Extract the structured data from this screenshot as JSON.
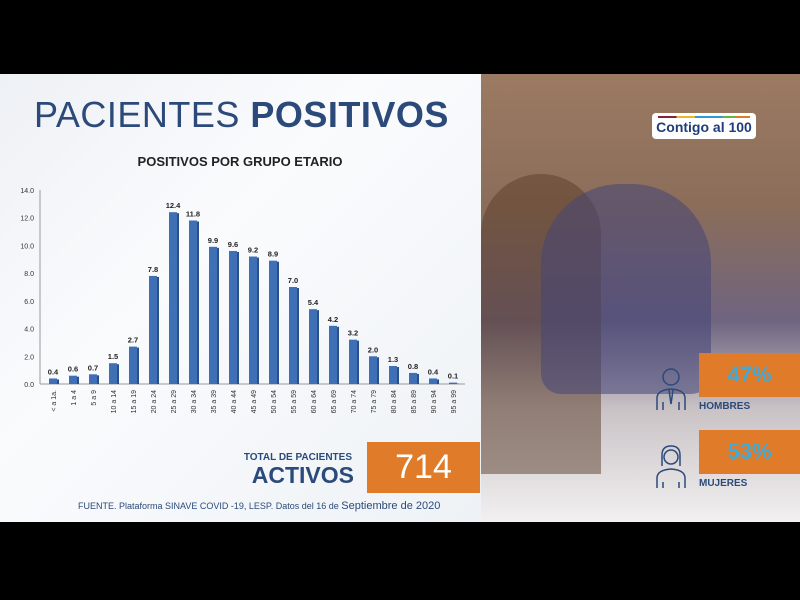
{
  "header": {
    "title_light": "PACIENTES",
    "title_bold": "POSITIVOS"
  },
  "chart_data": {
    "type": "bar",
    "title": "POSITIVOS POR GRUPO ETARIO",
    "categories": [
      "< a 1a.",
      "1 a 4",
      "5 a 9",
      "10 a 14",
      "15 a 19",
      "20 a 24",
      "25 a 29",
      "30 a 34",
      "35 a 39",
      "40 a 44",
      "45 a 49",
      "50 a 54",
      "55 a 59",
      "60 a 64",
      "65 a 69",
      "70 a 74",
      "75 a 79",
      "80 a 84",
      "85 a 89",
      "90 a 94",
      "95 a 99"
    ],
    "values": [
      0.4,
      0.6,
      0.7,
      1.5,
      2.7,
      7.8,
      12.4,
      11.8,
      9.9,
      9.6,
      9.2,
      8.9,
      7.0,
      5.4,
      4.2,
      3.2,
      2.0,
      1.3,
      0.8,
      0.4,
      0.1
    ],
    "ylim": [
      0,
      14
    ],
    "yticks": [
      "0.0",
      "2.0",
      "4.0",
      "6.0",
      "8.0",
      "10.0",
      "12.0",
      "14.0"
    ],
    "color": "#3f6fb5",
    "grid": false
  },
  "total": {
    "label": "TOTAL DE PACIENTES",
    "sublabel": "ACTIVOS",
    "value": "714"
  },
  "source": {
    "text": "FUENTE. Plataforma SINAVE COVID -19, LESP. Datos del 16 de ",
    "date": "Septiembre de 2020"
  },
  "logo": {
    "text": "Contigo al 100"
  },
  "gender": [
    {
      "label": "HOMBRES",
      "percent": "47%",
      "icon": "man-icon"
    },
    {
      "label": "MUJERES",
      "percent": "53%",
      "icon": "woman-icon"
    }
  ],
  "colors": {
    "accent": "#e07b2a",
    "title": "#2b4a7a",
    "percent_text": "#3fa9d8"
  }
}
